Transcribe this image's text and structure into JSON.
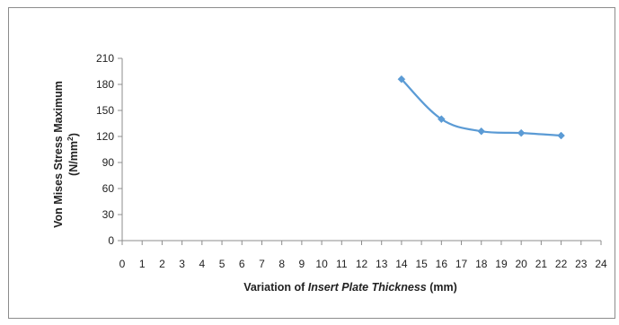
{
  "chart_data": {
    "type": "line",
    "title": "",
    "xlabel_parts": [
      "Variation of ",
      "Insert Plate Thickness",
      " (mm)"
    ],
    "ylabel_line1": "Von Mises Stress Maximum",
    "ylabel_line2_prefix": "(N/mm",
    "ylabel_line2_sup": "2",
    "ylabel_line2_suffix": ")",
    "xlim": [
      0,
      24
    ],
    "ylim": [
      0,
      210
    ],
    "x_ticks": [
      "0",
      "1",
      "2",
      "3",
      "4",
      "5",
      "6",
      "7",
      "8",
      "9",
      "10",
      "11",
      "12",
      "13",
      "14",
      "15",
      "16",
      "17",
      "18",
      "19",
      "20",
      "21",
      "22",
      "23",
      "24"
    ],
    "y_ticks": [
      "0",
      "30",
      "60",
      "90",
      "120",
      "150",
      "180",
      "210"
    ],
    "grid": false,
    "legend": "none",
    "series": [
      {
        "x": [
          14,
          16,
          18,
          20,
          22
        ],
        "y": [
          186,
          140,
          126,
          124,
          121
        ],
        "color": "#5b9bd5",
        "marker": "diamond",
        "smooth": true
      }
    ]
  }
}
